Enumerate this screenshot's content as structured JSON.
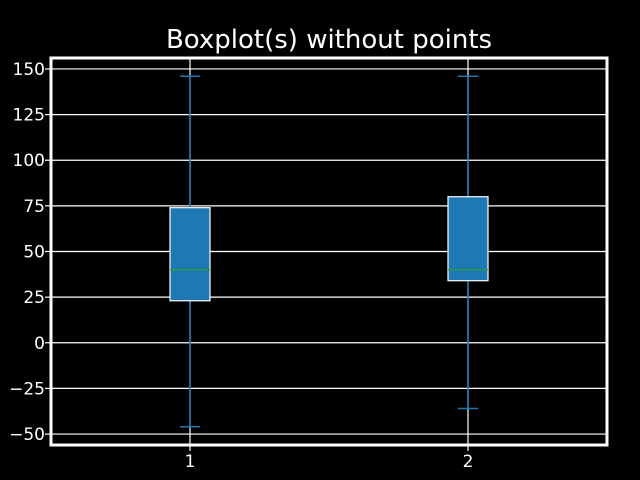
{
  "chart_data": {
    "type": "boxplot",
    "title": "Boxplot(s) without points",
    "xlabel": "",
    "ylabel": "",
    "categories": [
      "1",
      "2"
    ],
    "boxes": [
      {
        "whisker_low": -46,
        "q1": 23,
        "median": 40,
        "q3": 74,
        "whisker_high": 146
      },
      {
        "whisker_low": -36,
        "q1": 34,
        "median": 40,
        "q3": 80,
        "whisker_high": 146
      }
    ],
    "xlim": [
      0.5,
      2.5
    ],
    "ylim": [
      -56,
      156
    ],
    "yticks": [
      -50,
      -25,
      0,
      25,
      50,
      75,
      100,
      125,
      150
    ],
    "ytick_labels": [
      "−50",
      "−25",
      "0",
      "25",
      "50",
      "75",
      "100",
      "125",
      "150"
    ],
    "grid": true,
    "show_points": false,
    "colors": {
      "background": "#000000",
      "axes": "#ffffff",
      "grid": "#ffffff",
      "box_fill": "#1f77b4",
      "box_edge": "#ffffff",
      "whisker": "#1f77b4",
      "median": "#2ca02c"
    }
  }
}
